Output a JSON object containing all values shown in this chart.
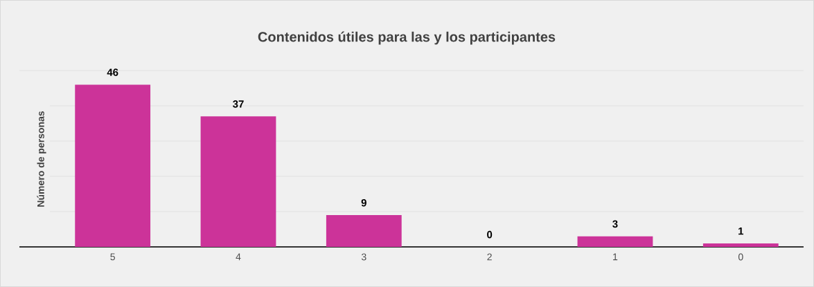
{
  "chart_data": {
    "type": "bar",
    "title": "Contenidos útiles para las y los participantes",
    "ylabel": "Número de personas",
    "categories": [
      "5",
      "4",
      "3",
      "2",
      "1",
      "0"
    ],
    "values": [
      46,
      37,
      9,
      0,
      3,
      1
    ],
    "color": "#cc3399",
    "ylim": [
      0,
      50
    ],
    "yticks": [
      {
        "value": 0,
        "label": null
      },
      {
        "value": 10,
        "label": null
      },
      {
        "value": 20,
        "label": null
      },
      {
        "value": 30,
        "label": null
      },
      {
        "value": 40,
        "label": null
      },
      {
        "value": 50,
        "label": null
      }
    ],
    "tick_labels": "x",
    "grid": "y",
    "data_labels": true
  }
}
